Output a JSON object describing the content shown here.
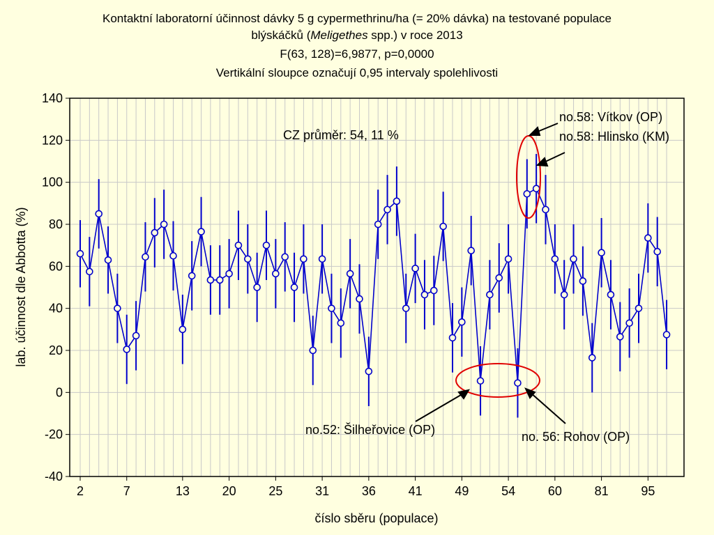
{
  "chart_data": {
    "type": "line",
    "title_lines": [
      "Kontaktní laboratorní účinnost dávky 5 g cypermethrinu/ha (= 20% dávka) na testované populace",
      "blýskáčků (Meligethes spp.) v roce 2013",
      "F(63, 128)=6,9877, p=0,0000",
      "Vertikální sloupce označují 0,95 intervaly spolehlivosti"
    ],
    "title_line2": {
      "before": "blýskáčků (",
      "italic": "Meligethes",
      "after": " spp.) v roce 2013"
    },
    "xlabel": "číslo sběru (populace)",
    "ylabel": "lab. účinnost dle Abbotta (%)",
    "ylim": [
      -40,
      140
    ],
    "yticks": [
      -40,
      -20,
      0,
      20,
      40,
      60,
      80,
      100,
      120,
      140
    ],
    "x_tick_labels": [
      {
        "index": 0,
        "label": "2"
      },
      {
        "index": 5,
        "label": "7"
      },
      {
        "index": 11,
        "label": "13"
      },
      {
        "index": 16,
        "label": "20"
      },
      {
        "index": 21,
        "label": "25"
      },
      {
        "index": 26,
        "label": "31"
      },
      {
        "index": 31,
        "label": "36"
      },
      {
        "index": 36,
        "label": "41"
      },
      {
        "index": 41,
        "label": "49"
      },
      {
        "index": 46,
        "label": "54"
      },
      {
        "index": 51,
        "label": "60"
      },
      {
        "index": 56,
        "label": "81"
      },
      {
        "index": 61,
        "label": "95"
      }
    ],
    "grid": true,
    "series": [
      {
        "color": "#0000cc",
        "values": [
          66,
          57.5,
          85,
          63,
          40,
          20.5,
          27,
          64.5,
          76,
          80,
          65,
          30,
          55.5,
          76.5,
          53.5,
          53.5,
          56.5,
          70,
          63.5,
          50,
          70,
          56.5,
          64.5,
          50,
          63.5,
          20,
          63.5,
          40,
          33,
          56.5,
          44.5,
          10,
          80,
          87,
          91,
          40,
          59,
          46.5,
          48.5,
          79,
          26,
          33.5,
          67.5,
          5.5,
          46.5,
          54.5,
          63.5,
          4.5,
          94.5,
          97,
          87,
          63.5,
          46.5,
          63.5,
          53,
          16.5,
          66.5,
          46.5,
          26.5,
          33,
          40,
          73.5,
          67,
          27.5
        ],
        "ci_halfwidth": [
          16,
          16.5,
          16.5,
          16,
          16.5,
          16.5,
          16.5,
          16.5,
          16.5,
          16.5,
          16.5,
          16.5,
          16.5,
          16.5,
          16.5,
          16.5,
          16.5,
          16.5,
          16.5,
          16.5,
          16.5,
          16.5,
          16.5,
          16.5,
          16.5,
          16.5,
          16.5,
          16.5,
          16.5,
          16.5,
          16.5,
          16.5,
          16.5,
          16.5,
          16.5,
          16.5,
          16.5,
          16.5,
          16.5,
          16.5,
          16.5,
          16.5,
          16.5,
          16.5,
          16.5,
          16.5,
          16.5,
          16.5,
          16.5,
          16.5,
          16.5,
          16.5,
          16.5,
          16.5,
          16.5,
          16.5,
          16.5,
          16.5,
          16.5,
          16.5,
          16.5,
          16.5,
          16.5,
          16.5
        ]
      }
    ],
    "annotations": {
      "average": "CZ průměr: 54, 11 %",
      "vitkov": "no.58: Vítkov (OP)",
      "hlinsko": "no.58: Hlinsko (KM)",
      "silherovice": "no.52: Šilheřovice (OP)",
      "rohov": "no. 56: Rohov (OP)"
    },
    "highlight_color": "#e00000"
  }
}
